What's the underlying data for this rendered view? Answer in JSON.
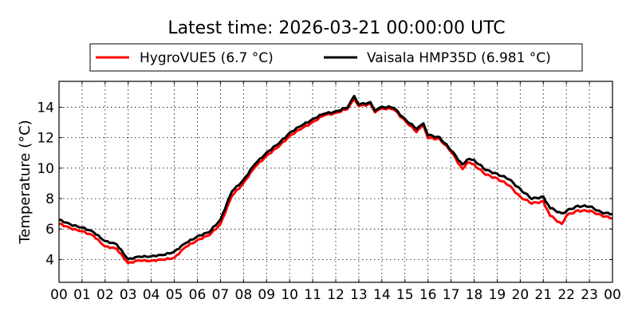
{
  "chart_data": {
    "type": "line",
    "title": "Latest time: 2026-03-21 00:00:00 UTC",
    "xlabel": "",
    "ylabel": "Temperature (°C)",
    "xlim": [
      0,
      24
    ],
    "ylim": [
      2.5,
      15.7
    ],
    "grid": true,
    "legend_position": "top-center, above plot",
    "x_ticks": [
      0,
      1,
      2,
      3,
      4,
      5,
      6,
      7,
      8,
      9,
      10,
      11,
      12,
      13,
      14,
      15,
      16,
      17,
      18,
      19,
      20,
      21,
      22,
      23,
      24
    ],
    "x_tick_labels": [
      "00",
      "01",
      "02",
      "03",
      "04",
      "05",
      "06",
      "07",
      "08",
      "09",
      "10",
      "11",
      "12",
      "13",
      "14",
      "15",
      "16",
      "17",
      "18",
      "19",
      "20",
      "21",
      "22",
      "23",
      "00"
    ],
    "y_ticks": [
      4,
      6,
      8,
      10,
      12,
      14
    ],
    "y_tick_labels": [
      "4",
      "6",
      "8",
      "10",
      "12",
      "14"
    ],
    "x": [
      0,
      0.5,
      1,
      1.5,
      2,
      2.5,
      3,
      3.5,
      4,
      4.5,
      5,
      5.5,
      6,
      6.5,
      7,
      7.5,
      8,
      8.5,
      9,
      9.5,
      10,
      10.5,
      11,
      11.5,
      12,
      12.5,
      12.8,
      13,
      13.5,
      13.7,
      14,
      14.5,
      15,
      15.5,
      15.8,
      16,
      16.5,
      17,
      17.5,
      17.7,
      18,
      18.5,
      19,
      19.5,
      20,
      20.5,
      21,
      21.3,
      21.8,
      22,
      22.5,
      23,
      23.5,
      24
    ],
    "series": [
      {
        "name": "HygroVUE5 (6.7 °C)",
        "color": "#ff0000",
        "values": [
          6.35,
          6.05,
          5.85,
          5.55,
          4.85,
          4.7,
          3.75,
          3.95,
          3.9,
          4.0,
          4.1,
          4.85,
          5.25,
          5.6,
          6.3,
          8.2,
          9.0,
          10.1,
          10.8,
          11.4,
          12.1,
          12.6,
          13.0,
          13.5,
          13.6,
          13.9,
          14.5,
          14.1,
          14.2,
          13.7,
          13.9,
          13.9,
          13.1,
          12.4,
          12.8,
          12.0,
          11.9,
          11.1,
          9.9,
          10.4,
          10.2,
          9.6,
          9.3,
          8.9,
          8.1,
          7.7,
          7.8,
          6.9,
          6.3,
          6.9,
          7.2,
          7.2,
          6.9,
          6.7
        ]
      },
      {
        "name": "Vaisala HMP35D (6.981 °C)",
        "color": "#000000",
        "values": [
          6.6,
          6.3,
          6.1,
          5.8,
          5.2,
          5.0,
          4.0,
          4.2,
          4.2,
          4.3,
          4.5,
          5.1,
          5.5,
          5.8,
          6.6,
          8.5,
          9.2,
          10.3,
          11.0,
          11.6,
          12.3,
          12.8,
          13.2,
          13.6,
          13.7,
          14.0,
          14.7,
          14.2,
          14.3,
          13.8,
          14.0,
          14.0,
          13.2,
          12.6,
          12.9,
          12.2,
          12.0,
          11.2,
          10.2,
          10.6,
          10.5,
          9.9,
          9.6,
          9.3,
          8.6,
          8.0,
          8.1,
          7.4,
          7.0,
          7.2,
          7.5,
          7.5,
          7.1,
          6.98
        ]
      }
    ]
  }
}
